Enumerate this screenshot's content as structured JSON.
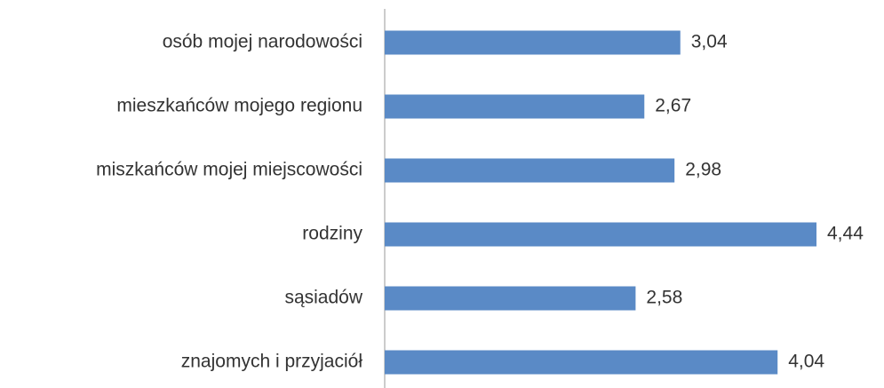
{
  "chart_data": {
    "type": "hbar",
    "categories": [
      "osób mojej narodowości",
      "mieszkańców mojego regionu",
      "miszkańców mojej miejscowości",
      "rodziny",
      "sąsiadów",
      "znajomych i przyjaciół"
    ],
    "values": [
      3.04,
      2.67,
      2.98,
      4.44,
      2.58,
      4.04
    ],
    "value_labels": [
      "3,04",
      "2,67",
      "2,98",
      "4,44",
      "2,58",
      "4,04"
    ],
    "color": "#5a8ac6"
  }
}
